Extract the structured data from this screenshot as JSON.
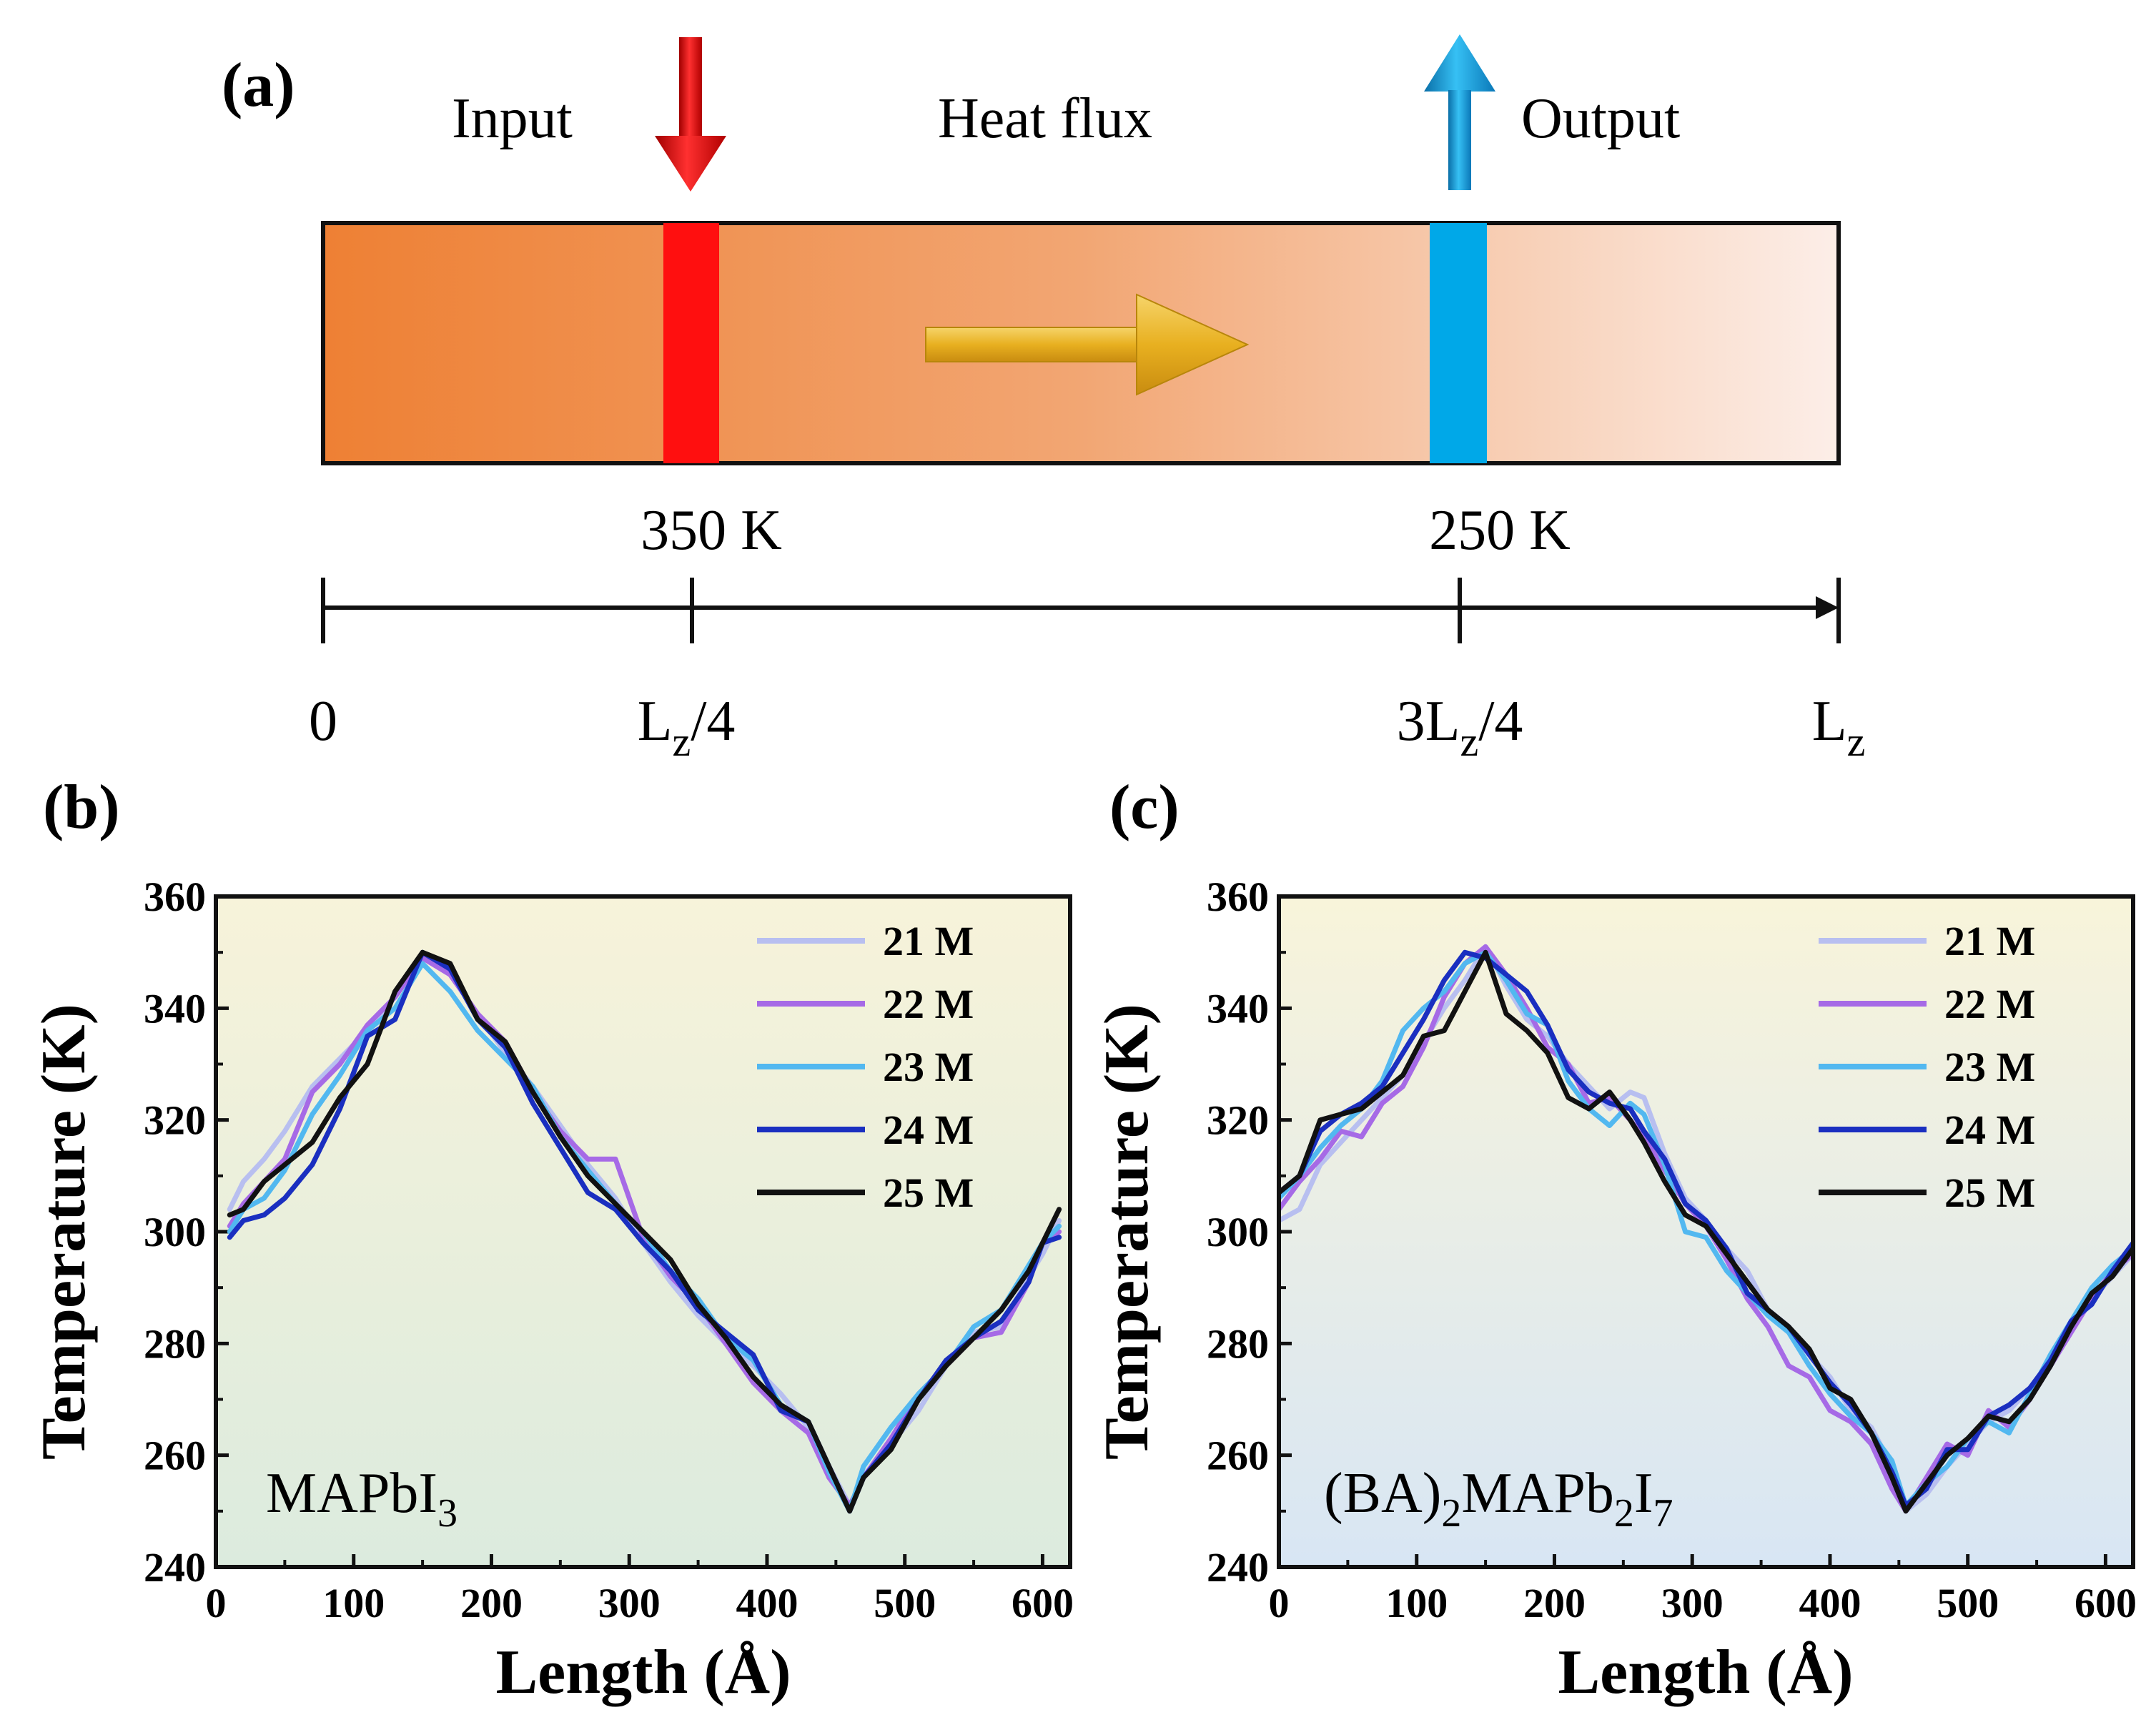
{
  "panel_a": {
    "label": "(a)",
    "input_label": "Input",
    "heat_flux_label": "Heat flux",
    "output_label": "Output",
    "hot_temp": "350 K",
    "cold_temp": "250 K",
    "axis_ticks": {
      "start": "0",
      "quarter_main": "L",
      "quarter_sub": "z",
      "quarter_suffix": "/4",
      "three_quarter_prefix": "3L",
      "three_quarter_sub": "z",
      "three_quarter_suffix": "/4",
      "end_main": "L",
      "end_sub": "z"
    },
    "colors": {
      "slab_hot": "#EE8034",
      "slab_cold": "#FCEEE8",
      "hot_bar": "#FF0F0F",
      "cold_bar": "#00A8E8",
      "flux_arrow": "#E8B020"
    }
  },
  "legend_labels": [
    "21 M",
    "22 M",
    "23 M",
    "24 M",
    "25 M"
  ],
  "series_colors": [
    "#B8BFF0",
    "#A66AE6",
    "#52B8F0",
    "#1A2FC0",
    "#111111"
  ],
  "chart_data": [
    {
      "id": "b",
      "type": "line",
      "panel_label": "(b)",
      "annotation": {
        "main": "MAPbI",
        "sub": "3",
        "rest": ""
      },
      "xlabel": "Length (Å)",
      "ylabel": "Temperature (K)",
      "xlim": [
        0,
        620
      ],
      "ylim": [
        240,
        360
      ],
      "xticks": [
        0,
        100,
        200,
        300,
        400,
        500,
        600
      ],
      "yticks": [
        240,
        260,
        280,
        300,
        320,
        340,
        360
      ],
      "background": {
        "top": "#F7F3DA",
        "bottom": "#DCEBDE"
      },
      "series": [
        {
          "name": "21 M",
          "x": [
            10,
            20,
            35,
            50,
            70,
            90,
            110,
            130,
            150,
            170,
            190,
            210,
            230,
            250,
            270,
            290,
            310,
            330,
            350,
            370,
            390,
            410,
            430,
            445,
            460,
            470,
            490,
            510,
            530,
            550,
            570,
            590,
            600,
            612
          ],
          "y": [
            304,
            309,
            313,
            318,
            326,
            331,
            336,
            342,
            350,
            346,
            339,
            332,
            326,
            319,
            312,
            306,
            298,
            291,
            285,
            280,
            276,
            271,
            265,
            258,
            251,
            256,
            262,
            268,
            276,
            282,
            283,
            292,
            296,
            302
          ]
        },
        {
          "name": "22 M",
          "x": [
            10,
            20,
            35,
            50,
            70,
            90,
            110,
            130,
            150,
            170,
            190,
            210,
            230,
            250,
            270,
            290,
            310,
            330,
            350,
            370,
            390,
            410,
            430,
            445,
            460,
            470,
            490,
            510,
            530,
            550,
            570,
            590,
            600,
            612
          ],
          "y": [
            301,
            305,
            309,
            313,
            325,
            330,
            337,
            342,
            349,
            346,
            339,
            334,
            325,
            318,
            313,
            313,
            299,
            292,
            287,
            280,
            273,
            268,
            264,
            256,
            251,
            256,
            263,
            271,
            276,
            281,
            282,
            291,
            298,
            300
          ]
        },
        {
          "name": "23 M",
          "x": [
            10,
            20,
            35,
            50,
            70,
            90,
            110,
            130,
            150,
            170,
            190,
            210,
            230,
            250,
            270,
            290,
            310,
            330,
            350,
            370,
            390,
            410,
            430,
            445,
            460,
            470,
            490,
            510,
            530,
            550,
            570,
            590,
            600,
            612
          ],
          "y": [
            300,
            304,
            306,
            311,
            321,
            328,
            336,
            340,
            348,
            343,
            336,
            331,
            326,
            317,
            311,
            305,
            300,
            293,
            288,
            281,
            277,
            269,
            266,
            257,
            250,
            258,
            265,
            271,
            276,
            283,
            286,
            294,
            298,
            301
          ]
        },
        {
          "name": "24 M",
          "x": [
            10,
            20,
            35,
            50,
            70,
            90,
            110,
            130,
            150,
            170,
            190,
            210,
            230,
            250,
            270,
            290,
            310,
            330,
            350,
            370,
            390,
            410,
            430,
            445,
            460,
            470,
            490,
            510,
            530,
            550,
            570,
            590,
            600,
            612
          ],
          "y": [
            299,
            302,
            303,
            306,
            312,
            322,
            335,
            338,
            350,
            347,
            338,
            333,
            323,
            315,
            307,
            304,
            298,
            293,
            286,
            282,
            278,
            268,
            266,
            258,
            250,
            256,
            262,
            270,
            277,
            281,
            284,
            291,
            298,
            299
          ]
        },
        {
          "name": "25 M",
          "x": [
            10,
            20,
            35,
            50,
            70,
            90,
            110,
            130,
            150,
            170,
            190,
            210,
            230,
            250,
            270,
            290,
            310,
            330,
            350,
            370,
            390,
            410,
            430,
            445,
            460,
            470,
            490,
            510,
            530,
            550,
            570,
            590,
            600,
            612
          ],
          "y": [
            303,
            304,
            309,
            312,
            316,
            324,
            330,
            343,
            350,
            348,
            338,
            334,
            325,
            317,
            310,
            305,
            300,
            295,
            287,
            281,
            274,
            269,
            266,
            258,
            250,
            256,
            261,
            270,
            276,
            281,
            286,
            293,
            298,
            304
          ]
        }
      ]
    },
    {
      "id": "c",
      "type": "line",
      "panel_label": "(c)",
      "annotation": {
        "main": "(BA)",
        "sub": "2",
        "rest": "MAPb",
        "sub2": "2",
        "rest2": "I",
        "sub3": "7"
      },
      "xlabel": "Length (Å)",
      "ylabel": "Temperature (K)",
      "xlim": [
        0,
        620
      ],
      "ylim": [
        240,
        360
      ],
      "xticks": [
        0,
        100,
        200,
        300,
        400,
        500,
        600
      ],
      "yticks": [
        240,
        260,
        280,
        300,
        320,
        340,
        360
      ],
      "background": {
        "top": "#F8F4DA",
        "bottom": "#D8E6F4"
      },
      "series": [
        {
          "name": "21 M",
          "x": [
            0,
            15,
            30,
            45,
            60,
            75,
            90,
            105,
            120,
            135,
            150,
            165,
            180,
            195,
            210,
            225,
            240,
            255,
            265,
            280,
            295,
            310,
            325,
            340,
            355,
            370,
            385,
            400,
            415,
            430,
            445,
            455,
            470,
            485,
            500,
            515,
            530,
            545,
            560,
            575,
            590,
            605,
            620
          ],
          "y": [
            302,
            304,
            312,
            316,
            320,
            324,
            328,
            334,
            340,
            345,
            351,
            344,
            338,
            335,
            330,
            326,
            322,
            325,
            324,
            314,
            306,
            302,
            297,
            293,
            286,
            283,
            278,
            274,
            268,
            265,
            258,
            250,
            253,
            258,
            262,
            266,
            268,
            272,
            277,
            283,
            288,
            292,
            296
          ]
        },
        {
          "name": "22 M",
          "x": [
            0,
            15,
            30,
            45,
            60,
            75,
            90,
            105,
            120,
            135,
            150,
            165,
            180,
            195,
            210,
            225,
            240,
            255,
            265,
            280,
            295,
            310,
            325,
            340,
            355,
            370,
            385,
            400,
            415,
            430,
            445,
            455,
            470,
            485,
            500,
            515,
            530,
            545,
            560,
            575,
            590,
            605,
            620
          ],
          "y": [
            304,
            309,
            313,
            318,
            317,
            323,
            326,
            333,
            342,
            348,
            351,
            346,
            340,
            333,
            330,
            323,
            324,
            320,
            317,
            311,
            305,
            301,
            295,
            288,
            283,
            276,
            274,
            268,
            266,
            262,
            254,
            250,
            256,
            262,
            260,
            268,
            265,
            270,
            276,
            282,
            288,
            293,
            296
          ]
        },
        {
          "name": "23 M",
          "x": [
            0,
            15,
            30,
            45,
            60,
            75,
            90,
            105,
            120,
            135,
            150,
            165,
            180,
            195,
            210,
            225,
            240,
            255,
            265,
            280,
            295,
            310,
            325,
            340,
            355,
            370,
            385,
            400,
            415,
            430,
            445,
            455,
            470,
            485,
            500,
            515,
            530,
            545,
            560,
            575,
            590,
            605,
            620
          ],
          "y": [
            306,
            310,
            315,
            319,
            322,
            327,
            336,
            340,
            343,
            348,
            350,
            345,
            339,
            337,
            327,
            322,
            319,
            323,
            321,
            312,
            300,
            299,
            293,
            289,
            285,
            282,
            276,
            271,
            267,
            264,
            259,
            251,
            255,
            258,
            263,
            266,
            264,
            271,
            278,
            284,
            290,
            294,
            297
          ]
        },
        {
          "name": "24 M",
          "x": [
            0,
            15,
            30,
            45,
            60,
            75,
            90,
            105,
            120,
            135,
            150,
            165,
            180,
            195,
            210,
            225,
            240,
            255,
            265,
            280,
            295,
            310,
            325,
            340,
            355,
            370,
            385,
            400,
            415,
            430,
            445,
            455,
            470,
            485,
            500,
            515,
            530,
            545,
            560,
            575,
            590,
            605,
            620
          ],
          "y": [
            307,
            310,
            318,
            321,
            323,
            326,
            332,
            338,
            345,
            350,
            349,
            346,
            343,
            337,
            329,
            325,
            323,
            322,
            318,
            313,
            305,
            302,
            297,
            289,
            286,
            283,
            278,
            273,
            269,
            264,
            257,
            251,
            254,
            261,
            261,
            267,
            269,
            272,
            277,
            284,
            287,
            293,
            298
          ]
        },
        {
          "name": "25 M",
          "x": [
            0,
            15,
            30,
            45,
            60,
            75,
            90,
            105,
            120,
            135,
            150,
            165,
            180,
            195,
            210,
            225,
            240,
            255,
            265,
            280,
            295,
            310,
            325,
            340,
            355,
            370,
            385,
            400,
            415,
            430,
            445,
            455,
            470,
            485,
            500,
            515,
            530,
            545,
            560,
            575,
            590,
            605,
            620
          ],
          "y": [
            307,
            310,
            320,
            321,
            322,
            325,
            328,
            335,
            336,
            343,
            350,
            339,
            336,
            332,
            324,
            322,
            325,
            320,
            316,
            309,
            303,
            301,
            296,
            291,
            286,
            283,
            279,
            272,
            270,
            264,
            256,
            250,
            255,
            260,
            263,
            267,
            266,
            270,
            276,
            283,
            289,
            292,
            297
          ]
        }
      ]
    }
  ]
}
